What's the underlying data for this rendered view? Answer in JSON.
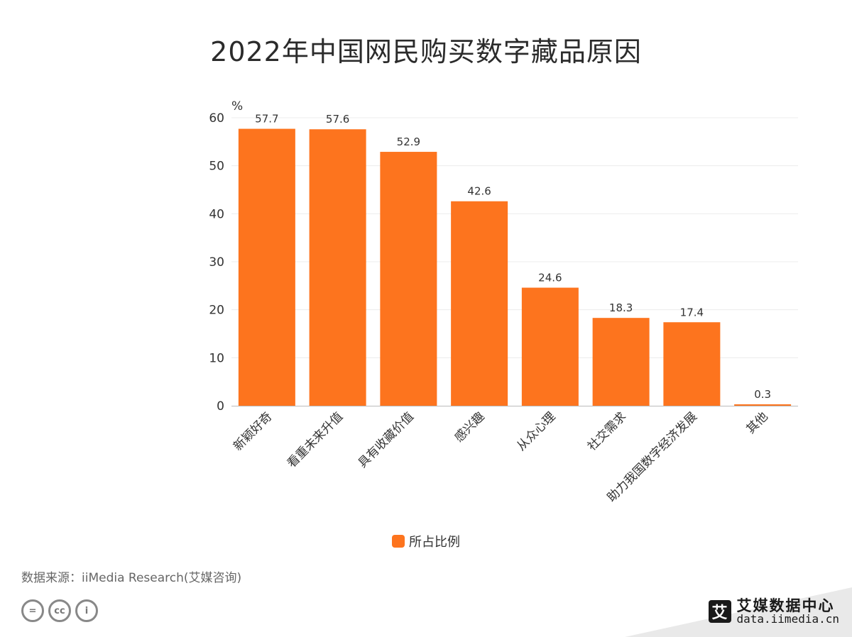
{
  "title": "2022年中国网民购买数字藏品原因",
  "chart_data": {
    "type": "bar",
    "categories": [
      "新颖好奇",
      "看重未来升值",
      "具有收藏价值",
      "感兴趣",
      "从众心理",
      "社交需求",
      "助力我国数字经济发展",
      "其他"
    ],
    "series": [
      {
        "name": "所占比例",
        "values": [
          57.7,
          57.6,
          52.9,
          42.6,
          24.6,
          18.3,
          17.4,
          0.3
        ]
      }
    ],
    "data_labels": [
      "57.7",
      "57.6",
      "52.9",
      "42.6",
      "24.6",
      "18.3",
      "17.4",
      "0.3"
    ],
    "y_unit": "%",
    "ylim": [
      0,
      60
    ],
    "yticks": [
      "0",
      "10",
      "20",
      "30",
      "40",
      "50",
      "60"
    ],
    "grid": true,
    "legend_position": "bottom-center",
    "bar_color": "#fd741e"
  },
  "source": "数据来源：iiMedia Research(艾媒咨询)",
  "license_icons": [
    "equals-icon",
    "cc-icon",
    "person-icon"
  ],
  "license_glyphs": [
    "=",
    "cc",
    "i"
  ],
  "brand": {
    "mark": "艾",
    "name": "艾媒数据中心",
    "url": "data.iimedia.cn"
  }
}
